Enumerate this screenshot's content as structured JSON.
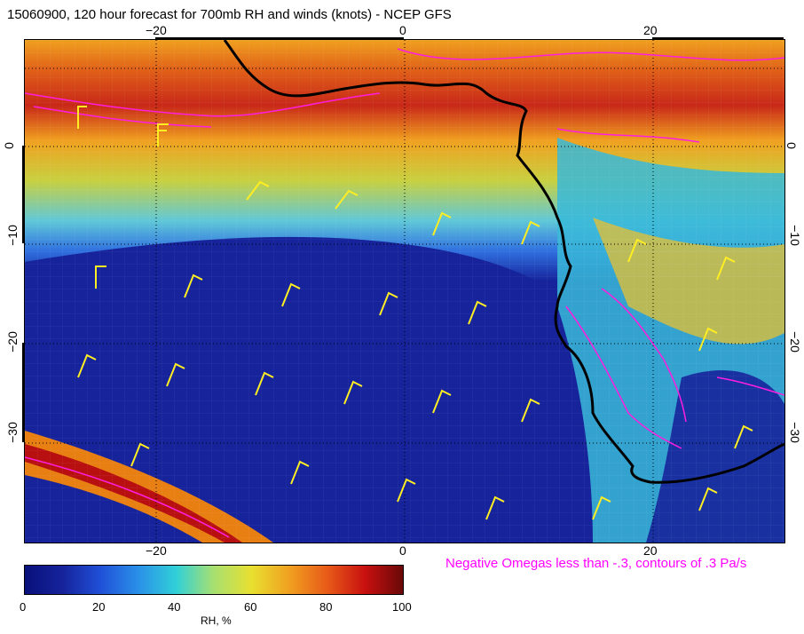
{
  "header": {
    "title": "15060900, 120 hour forecast for 700mb RH and winds (knots) - NCEP GFS"
  },
  "map": {
    "lon_ticks": [
      "−20",
      "0",
      "20"
    ],
    "lat_ticks": [
      "0",
      "−10",
      "−20",
      "−30"
    ],
    "colors": {
      "dry": "#16239b",
      "moist": "#e87f12",
      "saturated": "#b81010",
      "coast": "#000000",
      "wind_barbs": "#ffee22",
      "omega_contours": "#ff1ee0"
    }
  },
  "legend": {
    "omega_note": "Negative Omegas less than -.3, contours of .3 Pa/s",
    "colorbar_ticks": [
      "0",
      "20",
      "40",
      "60",
      "80",
      "100"
    ],
    "colorbar_label": "RH, %"
  },
  "chart_data": {
    "type": "heatmap",
    "lon_range": [
      -30,
      31
    ],
    "lat_range": [
      -40,
      10
    ],
    "colorbar_range": [
      0,
      100
    ]
  }
}
